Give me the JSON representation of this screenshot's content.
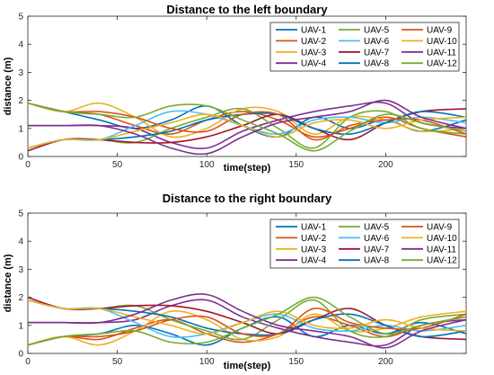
{
  "chart_data": [
    {
      "type": "line",
      "title": "Distance to the left boundary",
      "xlabel": "time(step)",
      "ylabel": "distance (m)",
      "xlim": [
        0,
        245
      ],
      "ylim": [
        0,
        5
      ],
      "xticks": [
        0,
        50,
        100,
        150,
        200
      ],
      "yticks": [
        0,
        1,
        2,
        3,
        4,
        5
      ],
      "legend": "top-right, 3 columns",
      "grid": false,
      "x": [
        0,
        20,
        40,
        60,
        80,
        100,
        120,
        140,
        160,
        180,
        200,
        220,
        245
      ],
      "series": [
        {
          "name": "UAV-1",
          "color": "#0072BD",
          "values": [
            1.9,
            1.6,
            1.3,
            1.0,
            1.3,
            1.8,
            1.1,
            0.7,
            1.4,
            1.0,
            1.3,
            0.9,
            1.3
          ]
        },
        {
          "name": "UAV-2",
          "color": "#D95319",
          "values": [
            1.9,
            1.6,
            1.5,
            1.1,
            0.8,
            1.3,
            1.6,
            1.3,
            0.7,
            1.0,
            1.4,
            1.0,
            0.7
          ]
        },
        {
          "name": "UAV-3",
          "color": "#EDB120",
          "values": [
            1.9,
            1.6,
            1.9,
            1.4,
            0.7,
            1.0,
            1.7,
            1.6,
            0.8,
            1.4,
            1.3,
            0.9,
            1.0
          ]
        },
        {
          "name": "UAV-4",
          "color": "#7E2F8E",
          "values": [
            1.1,
            1.1,
            1.1,
            1.0,
            0.5,
            0.3,
            0.9,
            1.3,
            1.6,
            1.8,
            1.9,
            1.2,
            1.0
          ]
        },
        {
          "name": "UAV-5",
          "color": "#77AC30",
          "values": [
            0.3,
            0.6,
            0.6,
            0.5,
            1.0,
            1.4,
            1.7,
            1.0,
            0.3,
            1.4,
            1.6,
            1.0,
            0.8
          ]
        },
        {
          "name": "UAV-6",
          "color": "#4DBEEE",
          "values": [
            0.3,
            0.6,
            0.6,
            1.1,
            1.6,
            1.5,
            1.1,
            0.8,
            1.3,
            1.4,
            1.2,
            1.4,
            1.2
          ]
        },
        {
          "name": "UAV-7",
          "color": "#A2142F",
          "values": [
            0.2,
            0.6,
            0.6,
            0.5,
            0.5,
            0.7,
            1.1,
            1.5,
            1.0,
            0.6,
            1.2,
            1.6,
            1.7
          ]
        },
        {
          "name": "UAV-8",
          "color": "#0072BD",
          "values": [
            0.3,
            0.6,
            0.6,
            0.7,
            0.9,
            1.3,
            1.5,
            1.5,
            1.0,
            0.8,
            1.2,
            1.6,
            1.4
          ]
        },
        {
          "name": "UAV-9",
          "color": "#D95319",
          "values": [
            1.9,
            1.6,
            1.6,
            1.4,
            1.0,
            0.9,
            1.5,
            1.5,
            0.6,
            1.1,
            1.3,
            1.3,
            0.8
          ]
        },
        {
          "name": "UAV-10",
          "color": "#EDB120",
          "values": [
            0.3,
            0.6,
            0.6,
            0.9,
            1.2,
            1.5,
            1.1,
            0.7,
            1.2,
            1.3,
            1.0,
            1.3,
            1.4
          ]
        },
        {
          "name": "UAV-11",
          "color": "#7E2F8E",
          "values": [
            1.1,
            1.1,
            1.1,
            0.8,
            0.3,
            0.1,
            0.7,
            1.2,
            1.4,
            1.6,
            2.0,
            1.4,
            1.0
          ]
        },
        {
          "name": "UAV-12",
          "color": "#77AC30",
          "values": [
            1.9,
            1.6,
            1.5,
            1.4,
            1.8,
            1.8,
            1.3,
            0.8,
            0.2,
            0.9,
            1.5,
            1.2,
            0.9
          ]
        }
      ]
    },
    {
      "type": "line",
      "title": "Distance to the right boundary",
      "xlabel": "time(step)",
      "ylabel": "distance (m)",
      "xlim": [
        0,
        245
      ],
      "ylim": [
        0,
        5
      ],
      "xticks": [
        0,
        50,
        100,
        150,
        200
      ],
      "yticks": [
        0,
        1,
        2,
        3,
        4,
        5
      ],
      "legend": "top-right, 3 columns",
      "grid": false,
      "x": [
        0,
        20,
        40,
        60,
        80,
        100,
        120,
        140,
        160,
        180,
        200,
        220,
        245
      ],
      "series": [
        {
          "name": "UAV-1",
          "color": "#0072BD",
          "values": [
            0.3,
            0.6,
            0.7,
            1.0,
            0.7,
            0.3,
            0.9,
            1.3,
            0.6,
            1.0,
            0.7,
            1.1,
            0.7
          ]
        },
        {
          "name": "UAV-2",
          "color": "#D95319",
          "values": [
            0.3,
            0.6,
            0.5,
            0.9,
            1.2,
            0.7,
            0.4,
            0.7,
            1.3,
            1.0,
            0.6,
            1.0,
            1.3
          ]
        },
        {
          "name": "UAV-3",
          "color": "#EDB120",
          "values": [
            0.3,
            0.6,
            0.3,
            0.8,
            1.5,
            1.2,
            0.5,
            0.6,
            1.4,
            0.8,
            0.9,
            1.3,
            1.5
          ]
        },
        {
          "name": "UAV-4",
          "color": "#7E2F8E",
          "values": [
            1.1,
            1.1,
            1.1,
            1.2,
            1.7,
            1.9,
            1.3,
            0.9,
            0.6,
            0.4,
            0.3,
            1.0,
            1.2
          ]
        },
        {
          "name": "UAV-5",
          "color": "#77AC30",
          "values": [
            1.9,
            1.6,
            1.6,
            1.7,
            1.2,
            0.8,
            0.5,
            1.2,
            1.9,
            0.8,
            0.6,
            1.2,
            1.4
          ]
        },
        {
          "name": "UAV-6",
          "color": "#4DBEEE",
          "values": [
            1.9,
            1.6,
            1.6,
            1.1,
            0.6,
            0.7,
            1.1,
            1.4,
            0.9,
            0.8,
            1.0,
            0.8,
            1.0
          ]
        },
        {
          "name": "UAV-7",
          "color": "#A2142F",
          "values": [
            2.0,
            1.6,
            1.6,
            1.7,
            1.7,
            1.5,
            1.1,
            0.7,
            1.2,
            1.6,
            1.0,
            0.6,
            0.5
          ]
        },
        {
          "name": "UAV-8",
          "color": "#0072BD",
          "values": [
            1.9,
            1.6,
            1.6,
            1.5,
            1.3,
            0.9,
            0.7,
            0.7,
            1.2,
            1.4,
            1.0,
            0.6,
            0.8
          ]
        },
        {
          "name": "UAV-9",
          "color": "#D95319",
          "values": [
            0.3,
            0.6,
            0.6,
            0.8,
            1.2,
            1.3,
            0.7,
            0.7,
            1.6,
            1.1,
            0.9,
            0.9,
            1.4
          ]
        },
        {
          "name": "UAV-10",
          "color": "#EDB120",
          "values": [
            1.9,
            1.6,
            1.6,
            1.3,
            1.0,
            0.7,
            1.1,
            1.5,
            1.0,
            0.9,
            1.2,
            0.9,
            0.8
          ]
        },
        {
          "name": "UAV-11",
          "color": "#7E2F8E",
          "values": [
            1.1,
            1.1,
            1.1,
            1.4,
            1.9,
            2.1,
            1.5,
            1.0,
            0.8,
            0.6,
            0.2,
            0.8,
            1.2
          ]
        },
        {
          "name": "UAV-12",
          "color": "#77AC30",
          "values": [
            0.3,
            0.6,
            0.7,
            0.8,
            0.4,
            0.4,
            0.9,
            1.4,
            2.0,
            1.3,
            0.7,
            1.0,
            1.3
          ]
        }
      ]
    }
  ]
}
